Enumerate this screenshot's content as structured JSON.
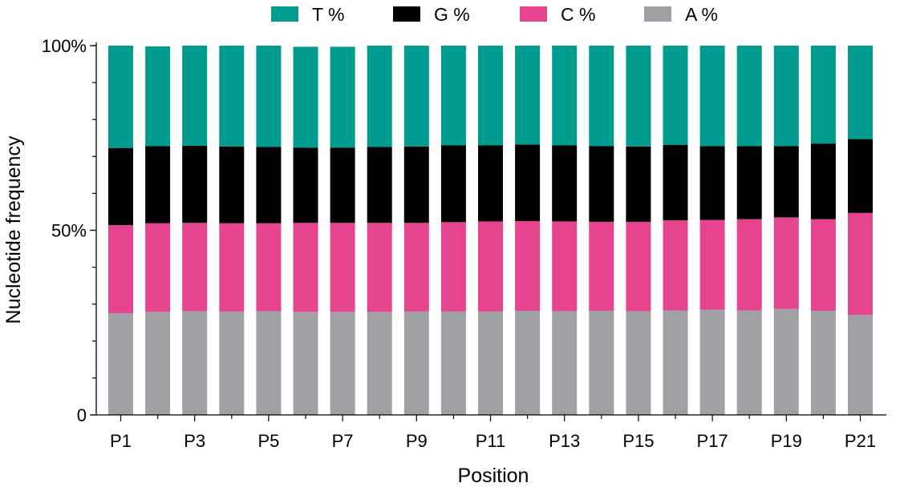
{
  "chart_data": {
    "type": "bar",
    "stacked": true,
    "normalized": true,
    "title": "",
    "xlabel": "Position",
    "ylabel": "Nucleotide frequency",
    "ylim": [
      0,
      100
    ],
    "y_ticks": [
      {
        "value": 0,
        "label": "0"
      },
      {
        "value": 50,
        "label": "50%"
      },
      {
        "value": 100,
        "label": "100%"
      }
    ],
    "y_minor_step": 10,
    "categories": [
      "P1",
      "P2",
      "P3",
      "P4",
      "P5",
      "P6",
      "P7",
      "P8",
      "P9",
      "P10",
      "P11",
      "P12",
      "P13",
      "P14",
      "P15",
      "P16",
      "P17",
      "P18",
      "P19",
      "P20",
      "P21"
    ],
    "x_tick_labels": [
      "P1",
      "",
      "P3",
      "",
      "P5",
      "",
      "P7",
      "",
      "P9",
      "",
      "P11",
      "",
      "P13",
      "",
      "P15",
      "",
      "P17",
      "",
      "P19",
      "",
      "P21"
    ],
    "legend_position": "top",
    "series": [
      {
        "name": "A %",
        "color": "#a1a1a5",
        "values": [
          27.5,
          27.9,
          28.1,
          28.0,
          28.1,
          27.9,
          27.9,
          27.9,
          28.0,
          28.0,
          28.0,
          28.2,
          28.1,
          28.2,
          28.1,
          28.3,
          28.5,
          28.3,
          28.7,
          28.2,
          27.1
        ]
      },
      {
        "name": "C %",
        "color": "#e6448f",
        "values": [
          23.9,
          24.0,
          23.9,
          23.9,
          23.8,
          24.1,
          24.1,
          24.1,
          24.0,
          24.2,
          24.4,
          24.3,
          24.3,
          24.1,
          24.2,
          24.4,
          24.3,
          24.7,
          24.8,
          24.8,
          27.6
        ]
      },
      {
        "name": "G %",
        "color": "#000000",
        "values": [
          20.9,
          20.9,
          20.9,
          20.8,
          20.7,
          20.4,
          20.4,
          20.6,
          20.7,
          20.8,
          20.6,
          20.7,
          20.6,
          20.5,
          20.4,
          20.4,
          20.0,
          19.8,
          19.3,
          20.5,
          20.0
        ]
      },
      {
        "name": "T %",
        "color": "#009b8f",
        "values": [
          27.7,
          27.0,
          27.1,
          27.3,
          27.4,
          27.3,
          27.3,
          27.4,
          27.3,
          27.0,
          27.0,
          26.8,
          27.0,
          27.2,
          27.3,
          26.9,
          27.2,
          27.2,
          27.2,
          26.5,
          25.3
        ]
      }
    ],
    "legend_order": [
      "T %",
      "G %",
      "C %",
      "A %"
    ],
    "bar_totals": [
      100,
      99.8,
      100,
      100,
      100,
      99.7,
      99.7,
      100,
      100,
      100,
      100,
      100,
      100,
      100,
      100,
      100,
      100,
      100,
      100,
      100,
      100
    ]
  }
}
